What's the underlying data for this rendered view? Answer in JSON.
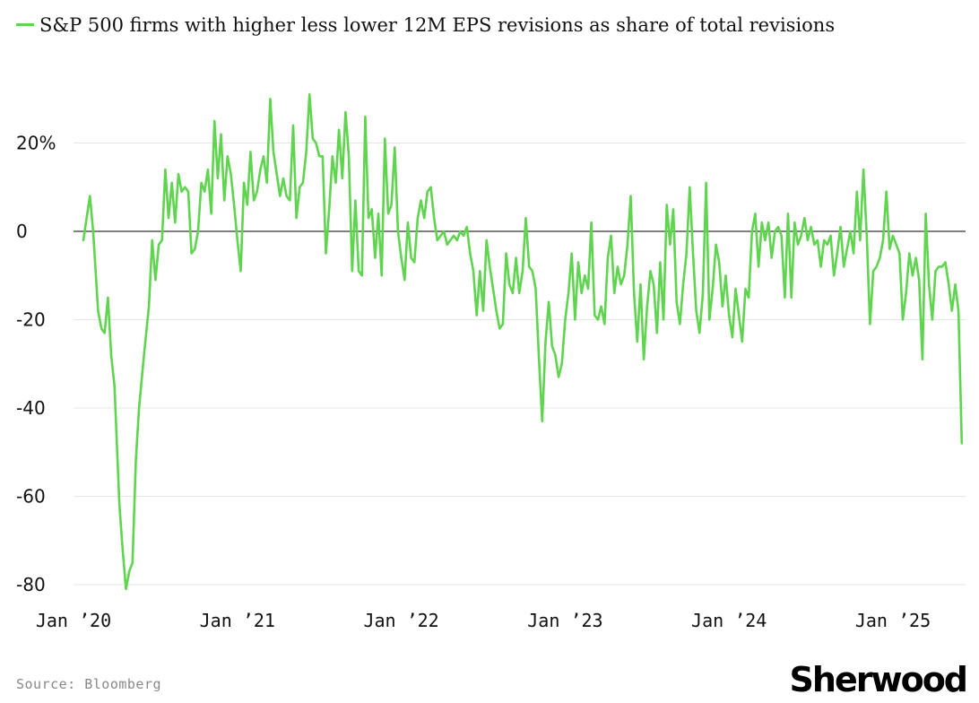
{
  "chart_data": {
    "type": "line",
    "title": "S&P 500 firms with higher less lower 12M EPS revisions as share of total revisions",
    "xlabel": "",
    "ylabel": "",
    "ylim": [
      -83,
      32
    ],
    "xlim": [
      2020.0,
      2025.2
    ],
    "y_ticks": [
      {
        "value": 20,
        "label": "20%"
      },
      {
        "value": 0,
        "label": "0"
      },
      {
        "value": -20,
        "label": "-20"
      },
      {
        "value": -40,
        "label": "-40"
      },
      {
        "value": -60,
        "label": "-60"
      },
      {
        "value": -80,
        "label": "-80"
      }
    ],
    "x_ticks": [
      {
        "value": 2020,
        "label": "Jan ’20"
      },
      {
        "value": 2021,
        "label": "Jan ’21"
      },
      {
        "value": 2022,
        "label": "Jan ’22"
      },
      {
        "value": 2023,
        "label": "Jan ’23"
      },
      {
        "value": 2024,
        "label": "Jan ’24"
      },
      {
        "value": 2025,
        "label": "Jan ’25"
      }
    ],
    "series": [
      {
        "name": "S&P 500 firms with higher less lower 12M EPS revisions as share of total revisions",
        "color": "#5fd44e",
        "points": [
          [
            2020.06,
            -2
          ],
          [
            2020.08,
            3
          ],
          [
            2020.1,
            8
          ],
          [
            2020.12,
            0
          ],
          [
            2020.15,
            -18
          ],
          [
            2020.17,
            -22
          ],
          [
            2020.19,
            -23
          ],
          [
            2020.21,
            -15
          ],
          [
            2020.23,
            -28
          ],
          [
            2020.25,
            -35
          ],
          [
            2020.28,
            -62
          ],
          [
            2020.3,
            -72
          ],
          [
            2020.32,
            -81
          ],
          [
            2020.34,
            -77
          ],
          [
            2020.36,
            -75
          ],
          [
            2020.38,
            -52
          ],
          [
            2020.4,
            -40
          ],
          [
            2020.43,
            -28
          ],
          [
            2020.46,
            -17
          ],
          [
            2020.48,
            -2
          ],
          [
            2020.5,
            -11
          ],
          [
            2020.52,
            -3
          ],
          [
            2020.54,
            -2
          ],
          [
            2020.56,
            14
          ],
          [
            2020.58,
            3
          ],
          [
            2020.6,
            11
          ],
          [
            2020.62,
            2
          ],
          [
            2020.64,
            13
          ],
          [
            2020.66,
            9
          ],
          [
            2020.68,
            10
          ],
          [
            2020.7,
            9
          ],
          [
            2020.72,
            -5
          ],
          [
            2020.74,
            -4
          ],
          [
            2020.76,
            0
          ],
          [
            2020.78,
            11
          ],
          [
            2020.8,
            9
          ],
          [
            2020.82,
            14
          ],
          [
            2020.84,
            4
          ],
          [
            2020.86,
            25
          ],
          [
            2020.88,
            12
          ],
          [
            2020.9,
            22
          ],
          [
            2020.92,
            7
          ],
          [
            2020.94,
            17
          ],
          [
            2020.96,
            13
          ],
          [
            2020.98,
            6
          ],
          [
            2021.0,
            -2
          ],
          [
            2021.02,
            -9
          ],
          [
            2021.04,
            11
          ],
          [
            2021.06,
            6
          ],
          [
            2021.08,
            18
          ],
          [
            2021.1,
            7
          ],
          [
            2021.12,
            9
          ],
          [
            2021.14,
            14
          ],
          [
            2021.16,
            17
          ],
          [
            2021.18,
            11
          ],
          [
            2021.2,
            30
          ],
          [
            2021.22,
            18
          ],
          [
            2021.24,
            13
          ],
          [
            2021.26,
            8
          ],
          [
            2021.28,
            12
          ],
          [
            2021.3,
            8
          ],
          [
            2021.32,
            7
          ],
          [
            2021.34,
            24
          ],
          [
            2021.36,
            3
          ],
          [
            2021.38,
            10
          ],
          [
            2021.4,
            11
          ],
          [
            2021.42,
            18
          ],
          [
            2021.44,
            31
          ],
          [
            2021.46,
            21
          ],
          [
            2021.48,
            20
          ],
          [
            2021.5,
            17
          ],
          [
            2021.52,
            17
          ],
          [
            2021.54,
            -5
          ],
          [
            2021.56,
            5
          ],
          [
            2021.58,
            17
          ],
          [
            2021.6,
            11
          ],
          [
            2021.62,
            23
          ],
          [
            2021.64,
            12
          ],
          [
            2021.66,
            27
          ],
          [
            2021.68,
            17
          ],
          [
            2021.7,
            -9
          ],
          [
            2021.72,
            7
          ],
          [
            2021.74,
            -9
          ],
          [
            2021.76,
            -10
          ],
          [
            2021.78,
            26
          ],
          [
            2021.8,
            3
          ],
          [
            2021.82,
            5
          ],
          [
            2021.84,
            -6
          ],
          [
            2021.86,
            4
          ],
          [
            2021.88,
            -10
          ],
          [
            2021.9,
            21
          ],
          [
            2021.92,
            4
          ],
          [
            2021.94,
            6
          ],
          [
            2021.96,
            19
          ],
          [
            2021.98,
            0
          ],
          [
            2022.0,
            -6
          ],
          [
            2022.02,
            -11
          ],
          [
            2022.04,
            2
          ],
          [
            2022.06,
            -6
          ],
          [
            2022.08,
            -7
          ],
          [
            2022.1,
            3
          ],
          [
            2022.12,
            7
          ],
          [
            2022.14,
            3
          ],
          [
            2022.16,
            9
          ],
          [
            2022.18,
            10
          ],
          [
            2022.2,
            3
          ],
          [
            2022.22,
            -2
          ],
          [
            2022.24,
            -1
          ],
          [
            2022.26,
            0
          ],
          [
            2022.28,
            -3
          ],
          [
            2022.3,
            -2
          ],
          [
            2022.32,
            -1
          ],
          [
            2022.34,
            -2
          ],
          [
            2022.36,
            0
          ],
          [
            2022.38,
            -1
          ],
          [
            2022.4,
            1
          ],
          [
            2022.42,
            -5
          ],
          [
            2022.44,
            -9
          ],
          [
            2022.46,
            -19
          ],
          [
            2022.48,
            -9
          ],
          [
            2022.5,
            -18
          ],
          [
            2022.52,
            -2
          ],
          [
            2022.54,
            -8
          ],
          [
            2022.56,
            -13
          ],
          [
            2022.58,
            -18
          ],
          [
            2022.6,
            -22
          ],
          [
            2022.62,
            -21
          ],
          [
            2022.64,
            -5
          ],
          [
            2022.66,
            -12
          ],
          [
            2022.68,
            -14
          ],
          [
            2022.7,
            -6
          ],
          [
            2022.72,
            -14
          ],
          [
            2022.74,
            -9
          ],
          [
            2022.76,
            3
          ],
          [
            2022.78,
            -8
          ],
          [
            2022.8,
            -9
          ],
          [
            2022.82,
            -13
          ],
          [
            2022.84,
            -29
          ],
          [
            2022.86,
            -43
          ],
          [
            2022.88,
            -25
          ],
          [
            2022.9,
            -16
          ],
          [
            2022.92,
            -26
          ],
          [
            2022.94,
            -28
          ],
          [
            2022.96,
            -33
          ],
          [
            2022.98,
            -30
          ],
          [
            2023.0,
            -20
          ],
          [
            2023.02,
            -14
          ],
          [
            2023.04,
            -5
          ],
          [
            2023.06,
            -20
          ],
          [
            2023.08,
            -7
          ],
          [
            2023.1,
            -14
          ],
          [
            2023.12,
            -10
          ],
          [
            2023.14,
            -13
          ],
          [
            2023.16,
            2
          ],
          [
            2023.18,
            -19
          ],
          [
            2023.2,
            -20
          ],
          [
            2023.22,
            -17
          ],
          [
            2023.24,
            -21
          ],
          [
            2023.26,
            -6
          ],
          [
            2023.28,
            -1
          ],
          [
            2023.3,
            -14
          ],
          [
            2023.32,
            -8
          ],
          [
            2023.34,
            -12
          ],
          [
            2023.36,
            -10
          ],
          [
            2023.38,
            -3
          ],
          [
            2023.4,
            8
          ],
          [
            2023.42,
            -14
          ],
          [
            2023.44,
            -25
          ],
          [
            2023.46,
            -12
          ],
          [
            2023.48,
            -29
          ],
          [
            2023.5,
            -17
          ],
          [
            2023.52,
            -9
          ],
          [
            2023.54,
            -12
          ],
          [
            2023.56,
            -23
          ],
          [
            2023.58,
            -7
          ],
          [
            2023.6,
            -20
          ],
          [
            2023.62,
            6
          ],
          [
            2023.64,
            -3
          ],
          [
            2023.66,
            5
          ],
          [
            2023.68,
            -16
          ],
          [
            2023.7,
            -21
          ],
          [
            2023.72,
            -12
          ],
          [
            2023.74,
            -5
          ],
          [
            2023.76,
            10
          ],
          [
            2023.78,
            -5
          ],
          [
            2023.8,
            -18
          ],
          [
            2023.82,
            -23
          ],
          [
            2023.84,
            -14
          ],
          [
            2023.86,
            11
          ],
          [
            2023.88,
            -20
          ],
          [
            2023.9,
            -13
          ],
          [
            2023.92,
            -3
          ],
          [
            2023.94,
            -7
          ],
          [
            2023.96,
            -17
          ],
          [
            2023.98,
            -10
          ],
          [
            2024.0,
            -19
          ],
          [
            2024.02,
            -24
          ],
          [
            2024.04,
            -13
          ],
          [
            2024.06,
            -19
          ],
          [
            2024.08,
            -25
          ],
          [
            2024.1,
            -13
          ],
          [
            2024.12,
            -15
          ],
          [
            2024.14,
            0
          ],
          [
            2024.16,
            4
          ],
          [
            2024.18,
            -8
          ],
          [
            2024.2,
            2
          ],
          [
            2024.22,
            -2
          ],
          [
            2024.24,
            2
          ],
          [
            2024.26,
            -6
          ],
          [
            2024.28,
            0
          ],
          [
            2024.3,
            1
          ],
          [
            2024.32,
            -1
          ],
          [
            2024.34,
            -15
          ],
          [
            2024.36,
            4
          ],
          [
            2024.38,
            -15
          ],
          [
            2024.4,
            2
          ],
          [
            2024.42,
            -3
          ],
          [
            2024.44,
            -1
          ],
          [
            2024.46,
            3
          ],
          [
            2024.48,
            -2
          ],
          [
            2024.5,
            1
          ],
          [
            2024.52,
            -3
          ],
          [
            2024.54,
            -2
          ],
          [
            2024.56,
            -8
          ],
          [
            2024.58,
            -2
          ],
          [
            2024.6,
            -3
          ],
          [
            2024.62,
            -1
          ],
          [
            2024.64,
            -10
          ],
          [
            2024.66,
            -5
          ],
          [
            2024.68,
            1
          ],
          [
            2024.7,
            -8
          ],
          [
            2024.72,
            -4
          ],
          [
            2024.74,
            0
          ],
          [
            2024.76,
            -5
          ],
          [
            2024.78,
            9
          ],
          [
            2024.8,
            -2
          ],
          [
            2024.82,
            14
          ],
          [
            2024.84,
            -1
          ],
          [
            2024.86,
            -21
          ],
          [
            2024.88,
            -9
          ],
          [
            2024.9,
            -8
          ],
          [
            2024.92,
            -6
          ],
          [
            2024.94,
            -2
          ],
          [
            2024.96,
            9
          ],
          [
            2024.98,
            -4
          ],
          [
            2025.0,
            -1
          ],
          [
            2025.02,
            -3
          ],
          [
            2025.04,
            -5
          ],
          [
            2025.06,
            -20
          ],
          [
            2025.08,
            -14
          ],
          [
            2025.1,
            -5
          ],
          [
            2025.12,
            -10
          ],
          [
            2025.14,
            -6
          ],
          [
            2025.16,
            -11
          ],
          [
            2025.18,
            -29
          ],
          [
            2025.2,
            4
          ],
          [
            2025.22,
            -12
          ],
          [
            2025.24,
            -20
          ],
          [
            2025.26,
            -9
          ],
          [
            2025.28,
            -8
          ],
          [
            2025.3,
            -8
          ],
          [
            2025.32,
            -7
          ],
          [
            2025.34,
            -12
          ],
          [
            2025.36,
            -18
          ],
          [
            2025.38,
            -12
          ],
          [
            2025.4,
            -18
          ],
          [
            2025.42,
            -48
          ]
        ]
      }
    ],
    "annotations": [
      {
        "type": "hline",
        "y": 0,
        "color": "#555555"
      }
    ]
  },
  "legend": {
    "label": "S&P 500 firms with higher less lower 12M EPS revisions as share of total revisions"
  },
  "footer": {
    "source": "Source: Bloomberg",
    "brand": "Sherwood"
  }
}
